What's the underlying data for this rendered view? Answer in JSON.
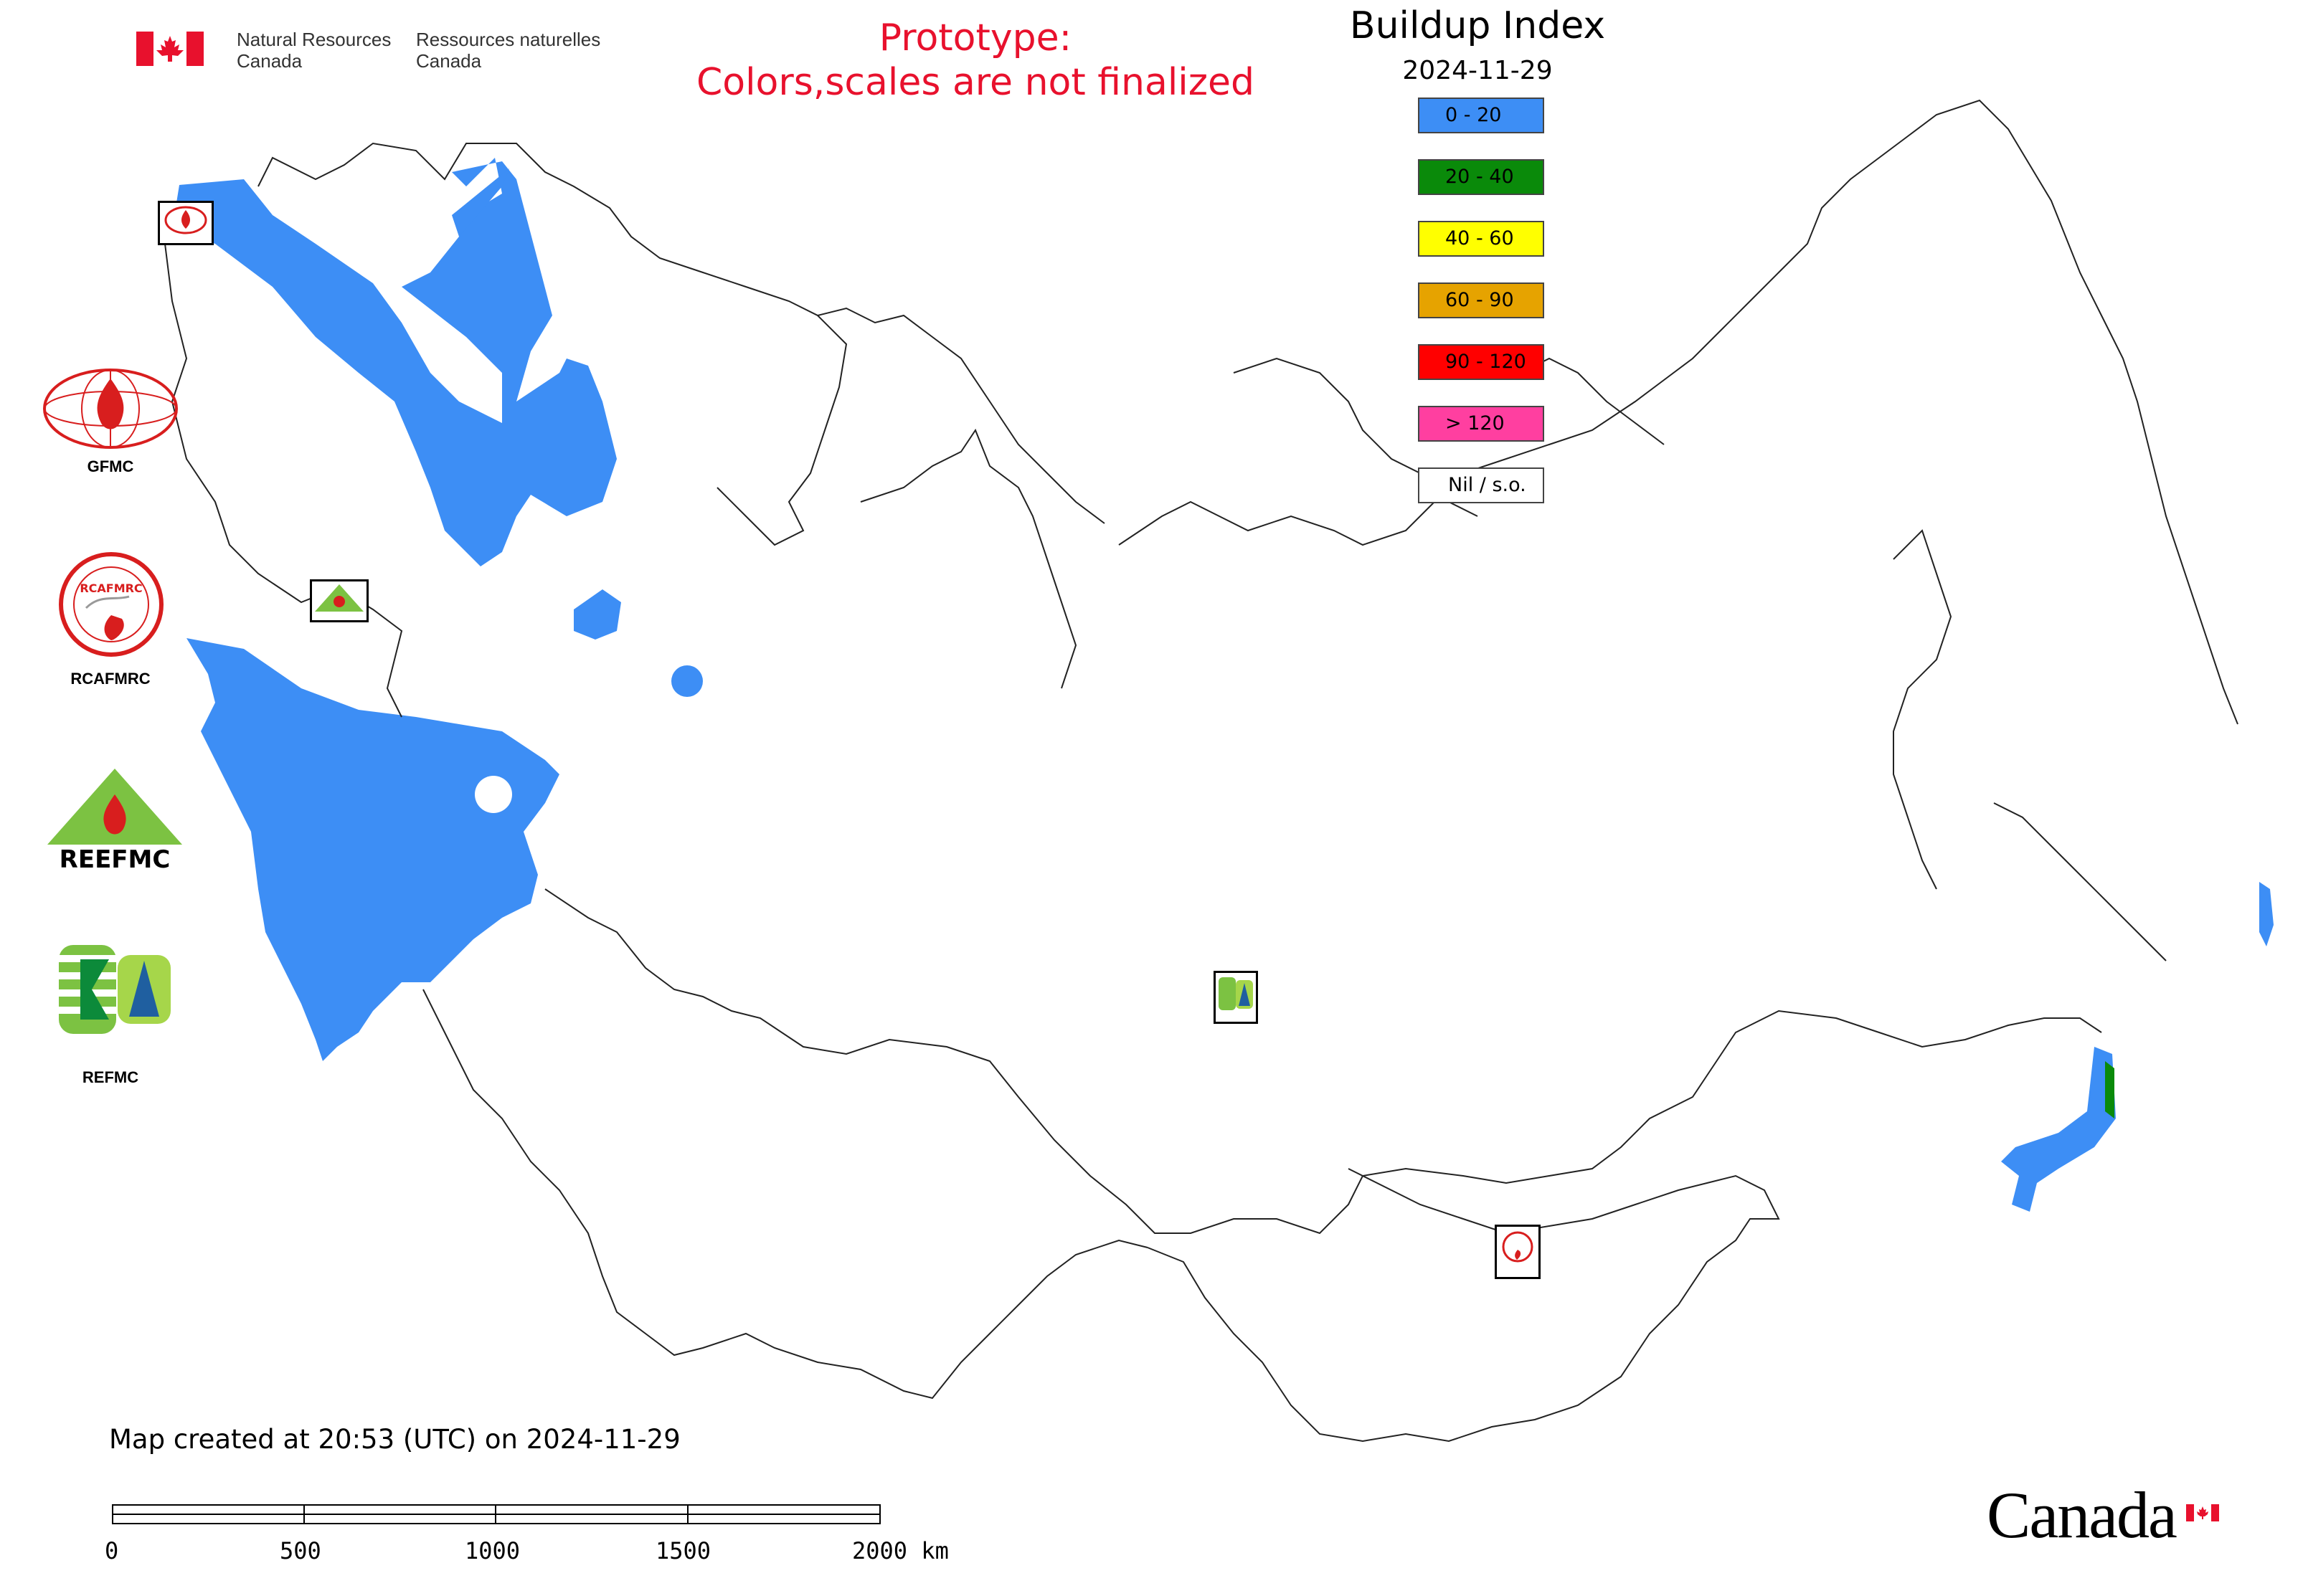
{
  "header": {
    "org_en_line1": "Natural Resources",
    "org_en_line2": "Canada",
    "org_fr_line1": "Ressources naturelles",
    "org_fr_line2": "Canada"
  },
  "notice": {
    "line1": "Prototype:",
    "line2": "Colors,scales are not finalized"
  },
  "map": {
    "title": "Buildup Index",
    "date": "2024-11-29",
    "legend": [
      {
        "label": "0 - 20",
        "color": "#3d8ef5"
      },
      {
        "label": "20 - 40",
        "color": "#0a8a0a"
      },
      {
        "label": "40 - 60",
        "color": "#ffff00"
      },
      {
        "label": "60 - 90",
        "color": "#e6a300"
      },
      {
        "label": "90 - 120",
        "color": "#ff0000"
      },
      {
        "label": "> 120",
        "color": "#ff3fa0"
      },
      {
        "label": "Nil / s.o.",
        "color": "#ffffff"
      }
    ]
  },
  "orgs": {
    "gfmc": "GFMC",
    "rcafmrc": "RCAFMRC",
    "reefmc": "REEFMC",
    "refmc": "REFMC",
    "rcafmrc_logo_text": "RCAFMRC",
    "reefmc_logo_text": "REEFMC"
  },
  "footer": {
    "created": "Map created at 20:53 (UTC) on 2024-11-29",
    "scale_ticks": [
      "0",
      "500",
      "1000",
      "1500",
      "2000 km"
    ],
    "canada_wordmark": "Canada"
  },
  "colors": {
    "accent_red": "#e8112d",
    "fire_blue": "#3d8ef5",
    "fire_green": "#0a8a0a"
  }
}
